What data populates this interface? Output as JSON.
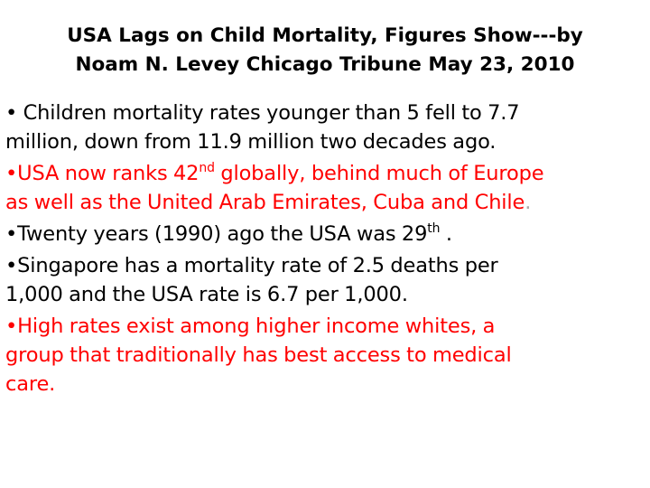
{
  "title": {
    "line1": "USA Lags on Child Mortality, Figures Show---by",
    "line2": "Noam N. Levey Chicago Tribune May 23, 2010"
  },
  "bullets": [
    {
      "bullet": "• ",
      "line1": "Children mortality rates younger than 5 fell to 7.7",
      "line2": "million, down from 11.9 million two decades ago.",
      "color": "#000000"
    },
    {
      "bullet": "•",
      "line1_pre": "USA now ranks 42",
      "line1_sup": "nd",
      "line1_post": " globally, behind much of Europe",
      "line2": "as well as the United Arab Emirates, Cuba and Chile",
      "line2_end": ".",
      "color": "#ff0000"
    },
    {
      "bullet": "•",
      "line1_pre": "Twenty years (1990) ago the USA was 29",
      "line1_sup": "th",
      "line1_post": " .",
      "color": "#000000"
    },
    {
      "bullet": "•",
      "line1": "Singapore has a mortality rate of 2.5 deaths per",
      "line2": "1,000 and the USA rate is 6.7 per 1,000.",
      "color": "#000000"
    },
    {
      "bullet": "•",
      "line1": "High rates exist among higher income whites, a",
      "line2": "group that traditionally has best access to medical",
      "line3": "care.",
      "color": "#ff0000"
    }
  ]
}
